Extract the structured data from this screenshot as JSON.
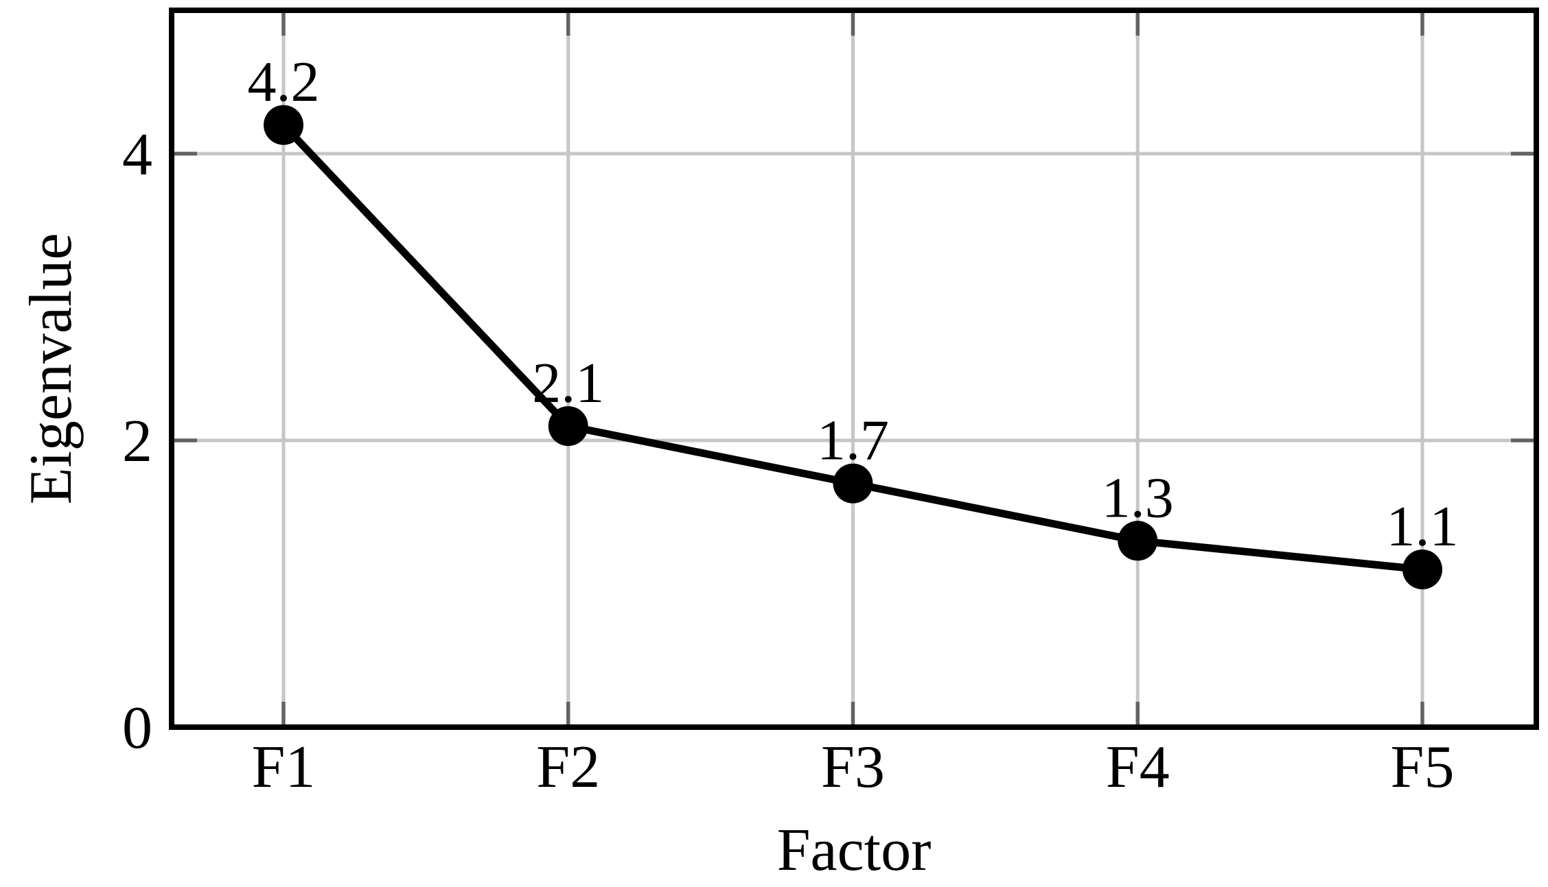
{
  "figure": {
    "background": "#ffffff"
  },
  "chart_data": {
    "type": "line",
    "title": "",
    "xlabel": "Factor",
    "ylabel": "Eigenvalue",
    "categories": [
      "F1",
      "F2",
      "F3",
      "F4",
      "F5"
    ],
    "series": [
      {
        "name": "Eigenvalue",
        "values": [
          4.2,
          2.1,
          1.7,
          1.3,
          1.1
        ]
      }
    ],
    "point_labels": [
      "4.2",
      "2.1",
      "1.7",
      "1.3",
      "1.1"
    ],
    "ylim": [
      0,
      5
    ],
    "yticks": [
      {
        "value": 0,
        "label": "0"
      },
      {
        "value": 2,
        "label": "2"
      },
      {
        "value": 4,
        "label": "4"
      }
    ],
    "grid": true,
    "legend": "none",
    "marker": "filled-circle",
    "colors": {
      "line": "#000000",
      "marker": "#000000",
      "grid": "#c6c6c6",
      "tick": "#636363",
      "axis_border": "#000000",
      "text": "#000000"
    }
  }
}
